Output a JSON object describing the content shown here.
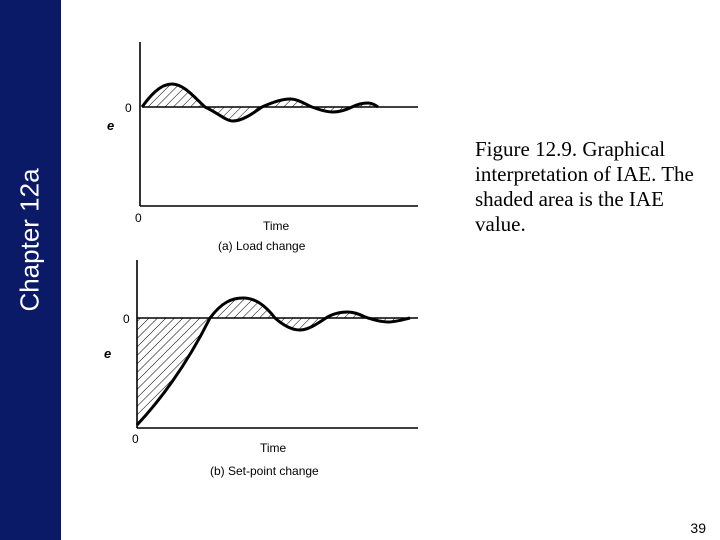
{
  "sidebar": {
    "title": "Chapter 12a",
    "color": "#0b1a66"
  },
  "figure": {
    "top_plot": {
      "y_label": "e",
      "zero_label_y": "0",
      "zero_label_x": "0",
      "x_label": "Time",
      "caption": "(a) Load change"
    },
    "bottom_plot": {
      "y_label": "e",
      "zero_label_y": "0",
      "zero_label_x": "0",
      "x_label": "Time",
      "caption": "(b) Set-point change"
    }
  },
  "caption": "Figure 12.9. Graphical interpretation of IAE. The shaded area is the IAE value.",
  "page_number": "39"
}
